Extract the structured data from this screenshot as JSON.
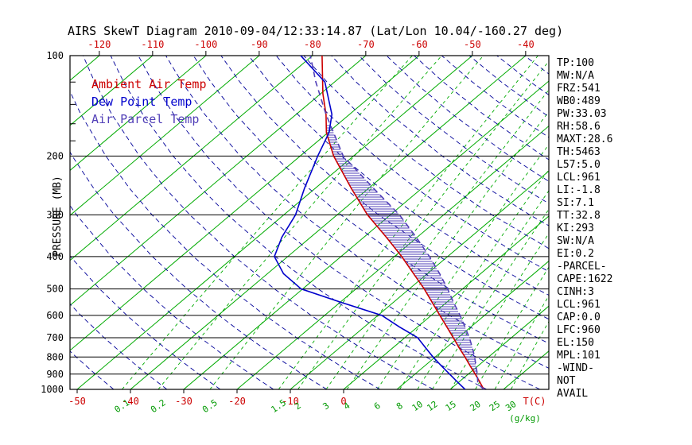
{
  "title": "AIRS SkewT Diagram 2010-09-04/12:33:14.87 (Lat/Lon 10.04/-160.27 deg)",
  "colors": {
    "isotherm": "#00aa00",
    "mixing_line": "#00aa00",
    "mixing_label": "#009900",
    "dry_adiabat": "#000099",
    "temp_label": "#cc0000",
    "ambient": "#cc0000",
    "dewpoint": "#0000cc",
    "parcel": "#5240b8",
    "axis": "#000000"
  },
  "legend": {
    "items": [
      {
        "label": "Ambient Air Temp",
        "color": "#cc0000"
      },
      {
        "label": "Dew Point Temp",
        "color": "#0000cc"
      },
      {
        "label": "Air Parcel Temp",
        "color": "#5240b8"
      }
    ]
  },
  "axes": {
    "pressure_label": "PRESSURE (MB)",
    "pressure_ticks": [
      100,
      200,
      300,
      400,
      500,
      600,
      700,
      800,
      900,
      1000
    ],
    "pressure_minor_ticks": [
      120,
      140,
      160,
      180
    ],
    "top_temp_ticks": [
      -120,
      -110,
      -100,
      -90,
      -80,
      -70,
      -60,
      -50,
      -40
    ],
    "bottom_temp_ticks": [
      -50,
      -40,
      -30,
      -20,
      -10,
      0
    ],
    "temp_unit_label": "T(C)",
    "mixing_unit_label": "(g/kg)",
    "mixing_ratio_labels": [
      0.1,
      0.2,
      0.5,
      1.5,
      2,
      3,
      4,
      6,
      8,
      10,
      12,
      15,
      20,
      25,
      30
    ]
  },
  "panel": {
    "lines": [
      "TP:100",
      "MW:N/A",
      "FRZ:541",
      "WB0:489",
      "PW:33.03",
      "RH:58.6",
      "MAXT:28.6",
      "TH:5463",
      "L57:5.0",
      "LCL:961",
      "LI:-1.8",
      "SI:7.1",
      "TT:32.8",
      "KI:293",
      "SW:N/A",
      "EI:0.2",
      "-PARCEL-",
      "CAPE:1622",
      "CINH:3",
      "LCL:961",
      "CAP:0.0",
      "LFC:960",
      "EL:150",
      "MPL:101",
      "-WIND-",
      "NOT",
      "AVAIL"
    ]
  },
  "chart_data": {
    "type": "line",
    "title": "AIRS SkewT Diagram",
    "x_axis": {
      "label": "T(C)",
      "skewed": true,
      "surface_range_c": [
        -50,
        40
      ],
      "tick_step_c": 10
    },
    "y_axis": {
      "label": "PRESSURE (MB)",
      "scale": "log",
      "range_mb": [
        100,
        1000
      ]
    },
    "grid": {
      "isotherm_step_c": 10,
      "dry_adiabats_theta_k": [
        220,
        230,
        240,
        250,
        260,
        270,
        280,
        290,
        300,
        310,
        320,
        330,
        340,
        350,
        360,
        370,
        380,
        390,
        400,
        410,
        420,
        430,
        440,
        450,
        460
      ],
      "mixing_ratios_g_kg": [
        0.1,
        0.2,
        0.5,
        1.5,
        2,
        3,
        4,
        6,
        8,
        10,
        12,
        15,
        20,
        25,
        30
      ]
    },
    "series": [
      {
        "name": "Ambient Air Temp",
        "style": "solid",
        "color_key": "ambient",
        "points_p_t": [
          [
            1000,
            26.3
          ],
          [
            950,
            23.9
          ],
          [
            900,
            21.3
          ],
          [
            850,
            18.5
          ],
          [
            800,
            15.6
          ],
          [
            750,
            12.4
          ],
          [
            700,
            9.1
          ],
          [
            650,
            5.5
          ],
          [
            600,
            1.6
          ],
          [
            550,
            -2.6
          ],
          [
            500,
            -7.2
          ],
          [
            450,
            -12.6
          ],
          [
            400,
            -18.6
          ],
          [
            350,
            -25.8
          ],
          [
            300,
            -34.3
          ],
          [
            250,
            -43.2
          ],
          [
            200,
            -53.7
          ],
          [
            170,
            -60.3
          ],
          [
            150,
            -64.4
          ],
          [
            130,
            -69.6
          ],
          [
            100,
            -78.2
          ]
        ]
      },
      {
        "name": "Dew Point Temp",
        "style": "solid",
        "color_key": "dewpoint",
        "points_p_t": [
          [
            1000,
            22.8
          ],
          [
            950,
            19.7
          ],
          [
            900,
            16.5
          ],
          [
            850,
            13.1
          ],
          [
            800,
            9.6
          ],
          [
            750,
            6.1
          ],
          [
            700,
            2.4
          ],
          [
            650,
            -3.4
          ],
          [
            600,
            -9.3
          ],
          [
            550,
            -19.5
          ],
          [
            500,
            -30.3
          ],
          [
            450,
            -37.0
          ],
          [
            400,
            -42.5
          ],
          [
            350,
            -45.4
          ],
          [
            300,
            -47.8
          ],
          [
            250,
            -52.0
          ],
          [
            200,
            -56.7
          ],
          [
            170,
            -59.8
          ],
          [
            150,
            -63.3
          ],
          [
            120,
            -71.8
          ],
          [
            100,
            -82.2
          ]
        ]
      },
      {
        "name": "Air Parcel Temp",
        "style": "dashed",
        "color_key": "parcel",
        "points_p_t": [
          [
            1000,
            26.3
          ],
          [
            961,
            23.9
          ],
          [
            900,
            21.7
          ],
          [
            850,
            19.6
          ],
          [
            800,
            17.4
          ],
          [
            750,
            14.9
          ],
          [
            700,
            12.1
          ],
          [
            650,
            8.9
          ],
          [
            600,
            5.4
          ],
          [
            550,
            1.4
          ],
          [
            500,
            -2.8
          ],
          [
            450,
            -7.7
          ],
          [
            400,
            -13.4
          ],
          [
            350,
            -20.2
          ],
          [
            300,
            -28.3
          ],
          [
            250,
            -39.0
          ],
          [
            200,
            -51.9
          ],
          [
            150,
            -64.4
          ],
          [
            120,
            -73.5
          ],
          [
            100,
            -80.4
          ]
        ]
      }
    ],
    "cape_region": {
      "between": [
        "Ambient Air Temp",
        "Air Parcel Temp"
      ],
      "from_pressure_mb": 958,
      "to_pressure_mb": 160
    }
  }
}
